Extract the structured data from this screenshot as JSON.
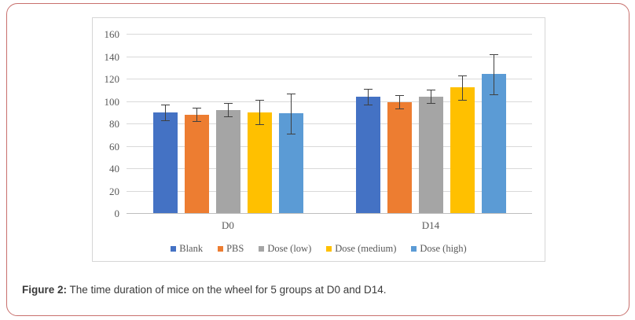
{
  "frame": {
    "border_color": "#c8706d"
  },
  "caption": {
    "label": "Figure 2:",
    "text": " The time duration of mice on the wheel for 5 groups at D0 and D14."
  },
  "chart_data": {
    "type": "bar",
    "title": "",
    "xlabel": "",
    "ylabel": "",
    "categories": [
      "D0",
      "D14"
    ],
    "series": [
      {
        "name": "Blank",
        "color": "#4472C4",
        "values": [
          90,
          104
        ],
        "errors": [
          7,
          7
        ]
      },
      {
        "name": "PBS",
        "color": "#ED7D31",
        "values": [
          88,
          99
        ],
        "errors": [
          6,
          6
        ]
      },
      {
        "name": "Dose (low)",
        "color": "#A5A5A5",
        "values": [
          92,
          104
        ],
        "errors": [
          6,
          6
        ]
      },
      {
        "name": "Dose (medium)",
        "color": "#FFC000",
        "values": [
          90,
          112
        ],
        "errors": [
          11,
          11
        ]
      },
      {
        "name": "Dose (high)",
        "color": "#5B9BD5",
        "values": [
          89,
          124
        ],
        "errors": [
          18,
          18
        ]
      }
    ],
    "ylim": [
      0,
      160
    ],
    "ytick_step": 20,
    "grid": true,
    "legend_position": "bottom",
    "colors": {
      "gridline": "#d9d9d9",
      "axis_line": "#bfbfbf",
      "error_bar": "#404040",
      "tick_text": "#595959"
    }
  }
}
